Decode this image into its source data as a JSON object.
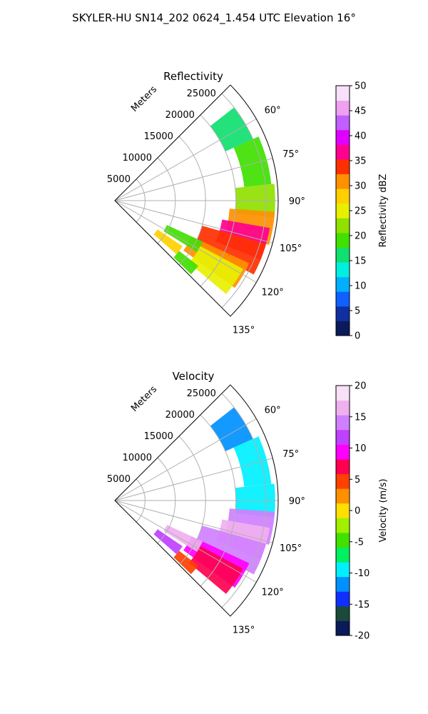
{
  "title": "SKYLER-HU  SN14_202  0624_1.454 UTC Elevation 16°",
  "chart_data": [
    {
      "type": "heatmap",
      "title": "Reflectivity",
      "projection": "polar-sector",
      "azimuth_range_deg": [
        45,
        135
      ],
      "range_max_m": 27000,
      "radial_label": "Meters",
      "radial_ticks": [
        "5000",
        "10000",
        "15000",
        "20000",
        "25000"
      ],
      "radial_tick_values": [
        5000,
        10000,
        15000,
        20000,
        25000
      ],
      "angle_ticks": [
        "60°",
        "75°",
        "90°",
        "105°",
        "120°",
        "135°"
      ],
      "angle_tick_values": [
        60,
        75,
        90,
        105,
        120,
        135
      ],
      "colorbar": {
        "label": "Reflectivity dBZ",
        "range": [
          0,
          50
        ],
        "ticks": [
          "0",
          "5",
          "10",
          "15",
          "20",
          "25",
          "30",
          "35",
          "40",
          "45",
          "50"
        ],
        "tick_values": [
          0,
          5,
          10,
          15,
          20,
          25,
          30,
          35,
          40,
          45,
          50
        ],
        "colors": [
          "#0a1a5a",
          "#1030a0",
          "#1060ff",
          "#00b0ff",
          "#00f0e0",
          "#10e070",
          "#40e000",
          "#90e000",
          "#e8f000",
          "#ffd000",
          "#ff9000",
          "#ff3000",
          "#ff0090",
          "#e000ff",
          "#c060ff",
          "#f0a0f0",
          "#f8e0f8"
        ]
      },
      "echoes": [
        {
          "az": [
            52,
            66
          ],
          "r": [
            20000,
            25000
          ],
          "value": 16
        },
        {
          "az": [
            66,
            84
          ],
          "r": [
            21500,
            26000
          ],
          "value": 20
        },
        {
          "az": [
            84,
            96
          ],
          "r": [
            20000,
            26500
          ],
          "value": 22
        },
        {
          "az": [
            94,
            106
          ],
          "r": [
            19000,
            26500
          ],
          "value": 30
        },
        {
          "az": [
            100,
            112
          ],
          "r": [
            18000,
            26000
          ],
          "value": 38
        },
        {
          "az": [
            106,
            118
          ],
          "r": [
            15000,
            26000
          ],
          "value": 34
        },
        {
          "az": [
            115,
            126
          ],
          "r": [
            14000,
            24500
          ],
          "value": 30
        },
        {
          "az": [
            118,
            130
          ],
          "r": [
            16000,
            24000
          ],
          "value": 25
        },
        {
          "az": [
            124,
            131
          ],
          "r": [
            8500,
            13500
          ],
          "value": 27
        },
        {
          "az": [
            115,
            122
          ],
          "r": [
            9500,
            16000
          ],
          "value": 20
        },
        {
          "az": [
            128,
            134
          ],
          "r": [
            13500,
            17500
          ],
          "value": 20
        }
      ]
    },
    {
      "type": "heatmap",
      "title": "Velocity",
      "projection": "polar-sector",
      "azimuth_range_deg": [
        45,
        135
      ],
      "range_max_m": 27000,
      "radial_label": "Meters",
      "radial_ticks": [
        "5000",
        "10000",
        "15000",
        "20000",
        "25000"
      ],
      "radial_tick_values": [
        5000,
        10000,
        15000,
        20000,
        25000
      ],
      "angle_ticks": [
        "60°",
        "75°",
        "90°",
        "105°",
        "120°",
        "135°"
      ],
      "angle_tick_values": [
        60,
        75,
        90,
        105,
        120,
        135
      ],
      "colorbar": {
        "label": "Velocity (m/s)",
        "range": [
          -20,
          20
        ],
        "ticks": [
          "-20",
          "-15",
          "-10",
          "-5",
          "0",
          "5",
          "10",
          "15",
          "20"
        ],
        "tick_values": [
          -20,
          -15,
          -10,
          -5,
          0,
          5,
          10,
          15,
          20
        ],
        "colors": [
          "#0a1a5a",
          "#1a4a3a",
          "#1030ff",
          "#0090ff",
          "#00f0ff",
          "#00f060",
          "#40e000",
          "#a0f000",
          "#ffe000",
          "#ff9000",
          "#ff4000",
          "#ff0050",
          "#ff00ff",
          "#c040ff",
          "#d080ff",
          "#f0b0f0",
          "#f8e0f8"
        ]
      },
      "echoes": [
        {
          "az": [
            52,
            66
          ],
          "r": [
            20000,
            25000
          ],
          "value": -12
        },
        {
          "az": [
            66,
            84
          ],
          "r": [
            21500,
            26000
          ],
          "value": -9
        },
        {
          "az": [
            84,
            96
          ],
          "r": [
            20000,
            26500
          ],
          "value": -10
        },
        {
          "az": [
            94,
            106
          ],
          "r": [
            19000,
            26500
          ],
          "value": 15
        },
        {
          "az": [
            100,
            112
          ],
          "r": [
            18000,
            26000
          ],
          "value": 17
        },
        {
          "az": [
            106,
            118
          ],
          "r": [
            15000,
            26000
          ],
          "value": 13
        },
        {
          "az": [
            115,
            126
          ],
          "r": [
            14000,
            24500
          ],
          "value": 9
        },
        {
          "az": [
            118,
            130
          ],
          "r": [
            16000,
            24000
          ],
          "value": 7
        },
        {
          "az": [
            124,
            131
          ],
          "r": [
            8500,
            13500
          ],
          "value": 11
        },
        {
          "az": [
            115,
            122
          ],
          "r": [
            9500,
            16000
          ],
          "value": 16
        },
        {
          "az": [
            128,
            134
          ],
          "r": [
            13500,
            17500
          ],
          "value": 4
        }
      ]
    }
  ]
}
